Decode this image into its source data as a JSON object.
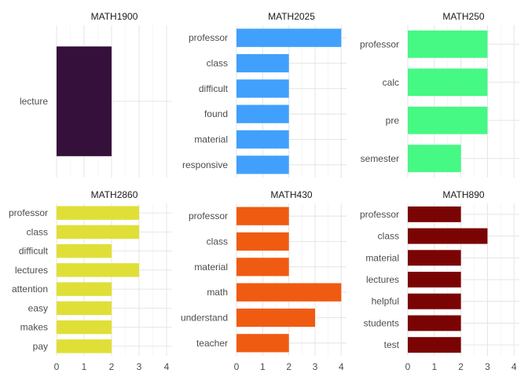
{
  "chart_data": [
    {
      "type": "bar",
      "orientation": "horizontal",
      "title": "MATH1900",
      "categories": [
        "lecture"
      ],
      "values": [
        2
      ],
      "color": "#35103a",
      "xlim": [
        0,
        4.2
      ],
      "xticks": [
        0,
        1,
        2,
        3,
        4
      ]
    },
    {
      "type": "bar",
      "orientation": "horizontal",
      "title": "MATH2025",
      "categories": [
        "professor",
        "class",
        "difficult",
        "found",
        "material",
        "responsive"
      ],
      "values": [
        4,
        2,
        2,
        2,
        2,
        2
      ],
      "color": "#41a0fc",
      "xlim": [
        0,
        4.2
      ],
      "xticks": [
        0,
        1,
        2,
        3,
        4
      ]
    },
    {
      "type": "bar",
      "orientation": "horizontal",
      "title": "MATH250",
      "categories": [
        "professor",
        "calc",
        "pre",
        "semester"
      ],
      "values": [
        3,
        3,
        3,
        2
      ],
      "color": "#46f884",
      "xlim": [
        0,
        4.2
      ],
      "xticks": [
        0,
        1,
        2,
        3,
        4
      ]
    },
    {
      "type": "bar",
      "orientation": "horizontal",
      "title": "MATH2860",
      "categories": [
        "professor",
        "class",
        "difficult",
        "lectures",
        "attention",
        "easy",
        "makes",
        "pay"
      ],
      "values": [
        3,
        3,
        2,
        3,
        2,
        2,
        2,
        2
      ],
      "color": "#e0df37",
      "xlim": [
        0,
        4.2
      ],
      "xticks": [
        0,
        1,
        2,
        3,
        4
      ]
    },
    {
      "type": "bar",
      "orientation": "horizontal",
      "title": "MATH430",
      "categories": [
        "professor",
        "class",
        "material",
        "math",
        "understand",
        "teacher"
      ],
      "values": [
        2,
        2,
        2,
        4,
        3,
        2
      ],
      "color": "#f05b12",
      "xlim": [
        0,
        4.2
      ],
      "xticks": [
        0,
        1,
        2,
        3,
        4
      ]
    },
    {
      "type": "bar",
      "orientation": "horizontal",
      "title": "MATH890",
      "categories": [
        "professor",
        "class",
        "material",
        "lectures",
        "helpful",
        "students",
        "test"
      ],
      "values": [
        2,
        3,
        2,
        2,
        2,
        2,
        2
      ],
      "color": "#7a0403",
      "xlim": [
        0,
        4.2
      ],
      "xticks": [
        0,
        1,
        2,
        3,
        4
      ]
    }
  ]
}
